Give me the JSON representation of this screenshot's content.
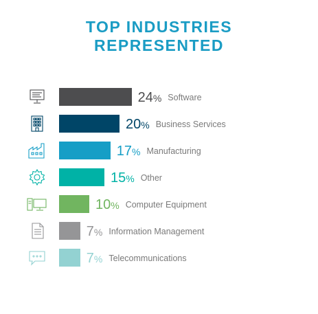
{
  "title_line1": "TOP INDUSTRIES",
  "title_line2": "REPRESENTED",
  "chart_data": {
    "type": "bar",
    "orientation": "horizontal",
    "title": "TOP INDUSTRIES REPRESENTED",
    "unit": "%",
    "categories": [
      "Software",
      "Business Services",
      "Manufacturing",
      "Other",
      "Computer Equipment",
      "Information Management",
      "Telecommunications"
    ],
    "values": [
      24,
      20,
      17,
      15,
      10,
      7,
      7
    ],
    "colors": [
      "#4d4d4f",
      "#004567",
      "#169ec6",
      "#00b2a6",
      "#71b560",
      "#959597",
      "#93d2d2"
    ],
    "icons": [
      "monitor-icon",
      "office-building-icon",
      "factory-icon",
      "gear-icon",
      "computer-equipment-icon",
      "document-icon",
      "chat-bubble-icon"
    ],
    "grid": false,
    "legend": "none"
  }
}
